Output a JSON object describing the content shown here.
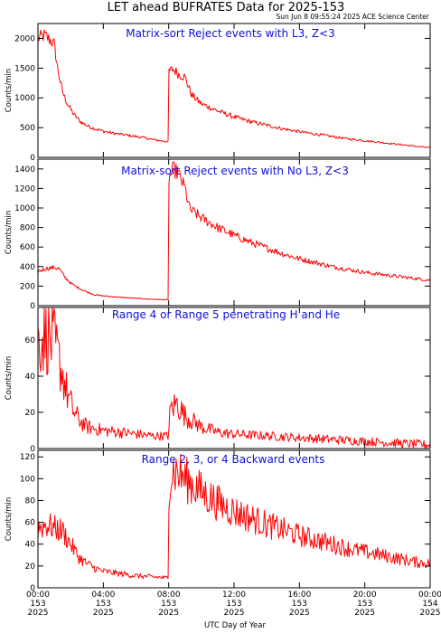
{
  "figure": {
    "title": "LET ahead BUFRATES Data for 2025-153",
    "timestamp": "Sun Jun  8 09:55:24 2025 ACE Science Center",
    "xlabel": "UTC Day of Year"
  },
  "colors": {
    "series": "#ff0000",
    "panel_title": "#1010dd",
    "axes": "#000000"
  },
  "chart_data": [
    {
      "type": "line",
      "title": "Matrix-sort Reject events with L3, Z<3",
      "ylabel": "Counts/min",
      "xlim": [
        0,
        24
      ],
      "ylim": [
        0,
        2250
      ],
      "yticks": [
        0,
        500,
        1000,
        1500,
        2000
      ],
      "xticks": [
        "00:00",
        "04:00",
        "08:00",
        "12:00",
        "16:00",
        "20:00",
        "00:00"
      ],
      "x": [
        0,
        0.4,
        0.8,
        1.0,
        1.2,
        1.5,
        1.8,
        2.2,
        2.6,
        3.0,
        3.5,
        4.0,
        4.5,
        5.0,
        5.5,
        6.0,
        6.5,
        7.0,
        7.5,
        7.99,
        8.01,
        8.3,
        8.6,
        9.0,
        9.4,
        10,
        11,
        12,
        13,
        14,
        15,
        16,
        17,
        18,
        19,
        20,
        21,
        22,
        23,
        24
      ],
      "y": [
        2000,
        2050,
        1960,
        1900,
        1500,
        1100,
        900,
        720,
        600,
        530,
        480,
        440,
        410,
        390,
        370,
        350,
        330,
        300,
        280,
        260,
        1450,
        1480,
        1400,
        1350,
        1050,
        900,
        780,
        680,
        600,
        540,
        480,
        430,
        390,
        350,
        310,
        280,
        250,
        220,
        190,
        160
      ]
    },
    {
      "type": "line",
      "title": "Matrix-sort Reject events with No L3, Z<3",
      "ylabel": "Counts/min",
      "xlim": [
        0,
        24
      ],
      "ylim": [
        0,
        1500
      ],
      "yticks": [
        0,
        200,
        400,
        600,
        800,
        1000,
        1200,
        1400
      ],
      "xticks": [
        "00:00",
        "04:00",
        "08:00",
        "12:00",
        "16:00",
        "20:00",
        "00:00"
      ],
      "x": [
        0,
        0.5,
        1.0,
        1.3,
        1.6,
        2.0,
        2.5,
        3.0,
        3.5,
        4.0,
        5,
        6,
        7,
        7.99,
        8.01,
        8.3,
        8.6,
        9.0,
        9.3,
        9.6,
        10,
        11,
        12,
        13,
        14,
        15,
        16,
        17,
        18,
        19,
        20,
        21,
        22,
        23,
        24
      ],
      "y": [
        350,
        380,
        390,
        380,
        300,
        230,
        180,
        140,
        110,
        100,
        85,
        75,
        65,
        60,
        1300,
        1400,
        1350,
        1200,
        980,
        950,
        900,
        800,
        720,
        650,
        590,
        530,
        480,
        440,
        400,
        370,
        340,
        320,
        300,
        280,
        260
      ]
    },
    {
      "type": "line",
      "title": "Range 4 or Range 5 penetrating H and He",
      "ylabel": "Counts/min",
      "xlim": [
        0,
        24
      ],
      "ylim": [
        0,
        78
      ],
      "yticks": [
        0,
        20,
        40,
        60
      ],
      "xticks": [
        "00:00",
        "04:00",
        "08:00",
        "12:00",
        "16:00",
        "20:00",
        "00:00"
      ],
      "x": [
        0,
        0.5,
        1.0,
        1.4,
        1.8,
        2.2,
        2.6,
        3.0,
        4.0,
        5.0,
        6.0,
        7.0,
        7.99,
        8.1,
        8.5,
        9.0,
        10,
        11,
        12,
        14,
        16,
        18,
        20,
        22,
        24
      ],
      "y": [
        60,
        62,
        58,
        45,
        30,
        20,
        15,
        12,
        10,
        9,
        8,
        7,
        7,
        22,
        25,
        18,
        12,
        9,
        8,
        7,
        6,
        5,
        4,
        3,
        2
      ]
    },
    {
      "type": "line",
      "title": "Range 2, 3, or 4 Backward events",
      "ylabel": "Counts/min",
      "xlim": [
        0,
        24
      ],
      "ylim": [
        0,
        126
      ],
      "yticks": [
        0,
        20,
        40,
        60,
        80,
        100,
        120
      ],
      "xticks": [
        "00:00",
        "04:00",
        "08:00",
        "12:00",
        "16:00",
        "20:00",
        "00:00"
      ],
      "x": [
        0,
        0.5,
        1.0,
        1.5,
        2.0,
        2.5,
        3.0,
        3.5,
        4.0,
        5.0,
        6.0,
        7.0,
        7.99,
        8.02,
        8.3,
        8.6,
        9.0,
        10,
        11,
        12,
        13,
        14,
        15,
        16,
        17,
        18,
        19,
        20,
        21,
        22,
        23,
        24
      ],
      "y": [
        55,
        58,
        55,
        52,
        40,
        28,
        22,
        18,
        15,
        13,
        11,
        10,
        9,
        100,
        108,
        105,
        100,
        88,
        78,
        70,
        64,
        58,
        53,
        48,
        44,
        40,
        36,
        33,
        30,
        27,
        24,
        22
      ]
    }
  ],
  "xaxis": {
    "ticks": [
      {
        "time": "00:00",
        "day": "153",
        "year": "2025"
      },
      {
        "time": "04:00",
        "day": "153",
        "year": "2025"
      },
      {
        "time": "08:00",
        "day": "153",
        "year": "2025"
      },
      {
        "time": "12:00",
        "day": "153",
        "year": "2025"
      },
      {
        "time": "16:00",
        "day": "153",
        "year": "2025"
      },
      {
        "time": "20:00",
        "day": "153",
        "year": "2025"
      },
      {
        "time": "00:00",
        "day": "154",
        "year": "2025"
      }
    ]
  }
}
